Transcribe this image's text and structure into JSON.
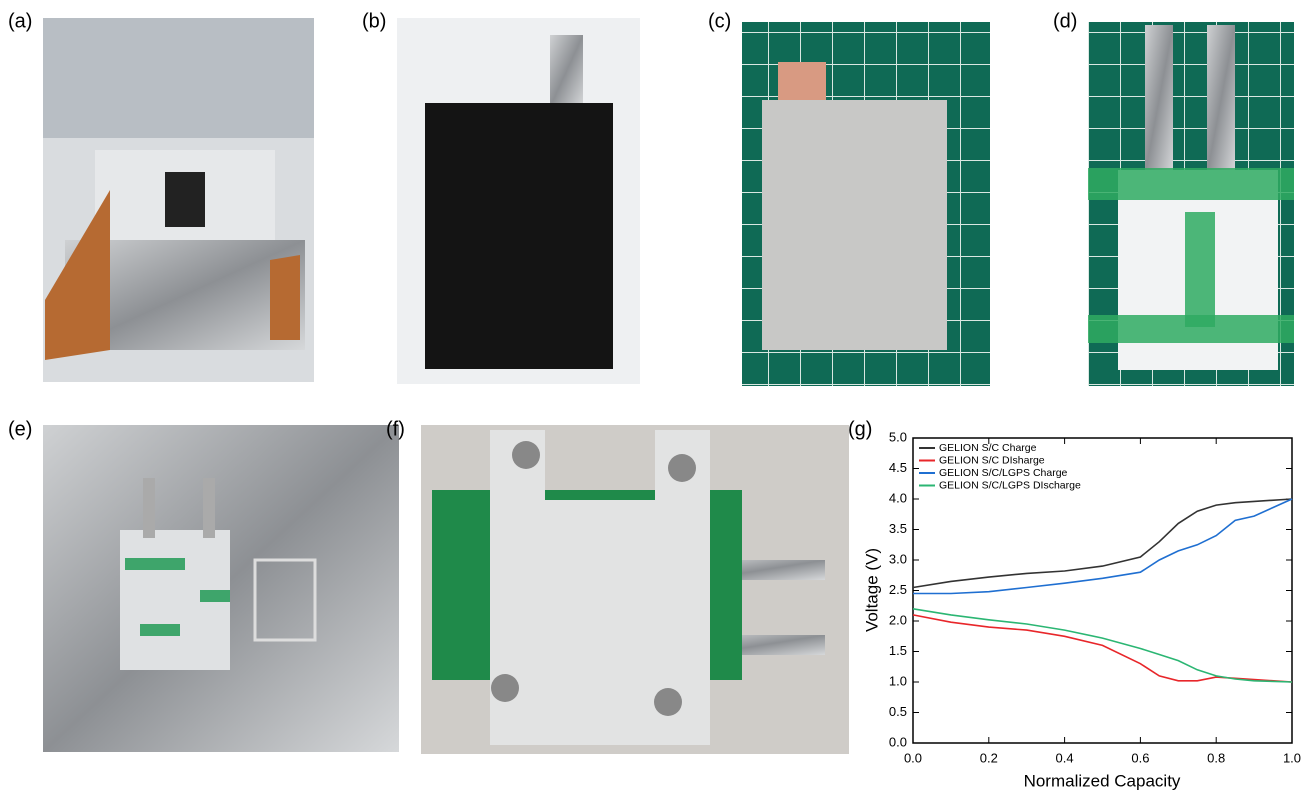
{
  "panels": [
    {
      "label": "(a)"
    },
    {
      "label": "(b)"
    },
    {
      "label": "(c)"
    },
    {
      "label": "(d)"
    },
    {
      "label": "(e)"
    },
    {
      "label": "(f)"
    },
    {
      "label": "(g)"
    }
  ],
  "chart_data": {
    "type": "line",
    "xlabel": "Normalized Capacity",
    "ylabel": "Voltage (V)",
    "x": [
      0,
      0.1,
      0.2,
      0.3,
      0.4,
      0.5,
      0.6,
      0.65,
      0.7,
      0.75,
      0.8,
      0.85,
      0.9,
      1.0
    ],
    "series": [
      {
        "name": "GELION S/C Charge",
        "color": "#333333",
        "values": [
          2.55,
          2.65,
          2.72,
          2.78,
          2.82,
          2.9,
          3.05,
          3.3,
          3.6,
          3.8,
          3.9,
          3.94,
          3.96,
          4.0
        ]
      },
      {
        "name": "GELION S/C DIsharge",
        "color": "#e8262a",
        "values": [
          2.1,
          1.98,
          1.9,
          1.85,
          1.75,
          1.6,
          1.3,
          1.1,
          1.02,
          1.02,
          1.08,
          1.06,
          1.04,
          1.0
        ]
      },
      {
        "name": "GELION S/C/LGPS Charge",
        "color": "#1f6fd1",
        "values": [
          2.45,
          2.45,
          2.48,
          2.55,
          2.62,
          2.7,
          2.8,
          3.0,
          3.15,
          3.25,
          3.4,
          3.65,
          3.72,
          4.0
        ]
      },
      {
        "name": "GELION S/C/LGPS DIscharge",
        "color": "#2bb673",
        "values": [
          2.2,
          2.1,
          2.02,
          1.95,
          1.85,
          1.72,
          1.55,
          1.45,
          1.35,
          1.2,
          1.1,
          1.05,
          1.02,
          1.0
        ]
      }
    ],
    "xlim": [
      0,
      1.0
    ],
    "xticks": [
      {
        "value": 0,
        "label": "0.0"
      },
      0.2,
      0.4,
      0.6,
      0.8,
      {
        "value": 1,
        "label": "1.0"
      }
    ],
    "ylim": [
      0,
      5.0
    ],
    "yticks": [
      {
        "value": 0,
        "label": "0.0"
      },
      0.5,
      {
        "value": 1,
        "label": "1.0"
      },
      1.5,
      {
        "value": 2,
        "label": "2.0"
      },
      2.5,
      {
        "value": 3,
        "label": "3.0"
      },
      3.5,
      {
        "value": 4,
        "label": "4.0"
      },
      4.5,
      {
        "value": 5,
        "label": "5.0"
      }
    ],
    "legend": "upper left"
  }
}
